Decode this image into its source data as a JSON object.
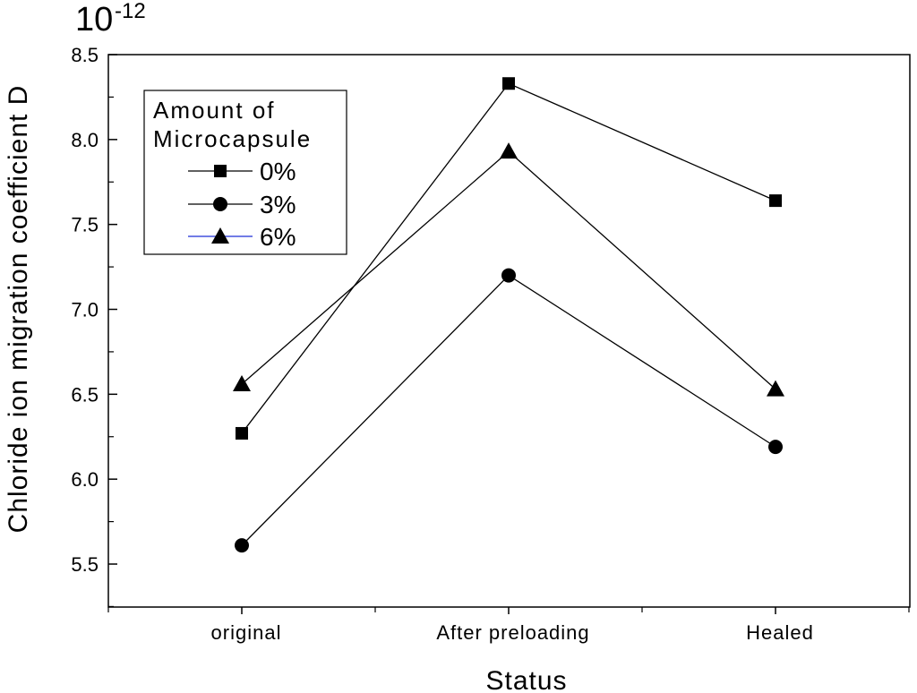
{
  "chart_data": {
    "type": "line",
    "title": "",
    "xlabel": "Status",
    "ylabel": "Chloride ion migration coefficient D",
    "y_scale_base": "10",
    "y_scale_exponent": "-12",
    "categories": [
      "original",
      "After preloading",
      "Healed"
    ],
    "ylim": [
      5.2,
      8.5
    ],
    "yticks": [
      5.5,
      6.0,
      6.5,
      7.0,
      7.5,
      8.0,
      8.5
    ],
    "ytick_labels": [
      "5.5",
      "6.0",
      "6.5",
      "7.0",
      "7.5",
      "8.0",
      "8.5"
    ],
    "grid": false,
    "legend_title": [
      "Amount of",
      "Microcapsule"
    ],
    "legend_position": "top-left",
    "series": [
      {
        "name": "0%",
        "marker": "square",
        "line_color": "#000000",
        "values": [
          6.27,
          8.33,
          7.64
        ]
      },
      {
        "name": "3%",
        "marker": "circle",
        "line_color": "#000000",
        "values": [
          5.61,
          7.2,
          6.19
        ]
      },
      {
        "name": "6%",
        "marker": "triangle",
        "line_color": "#1f2fd6",
        "values": [
          6.56,
          7.93,
          6.53
        ]
      }
    ]
  }
}
